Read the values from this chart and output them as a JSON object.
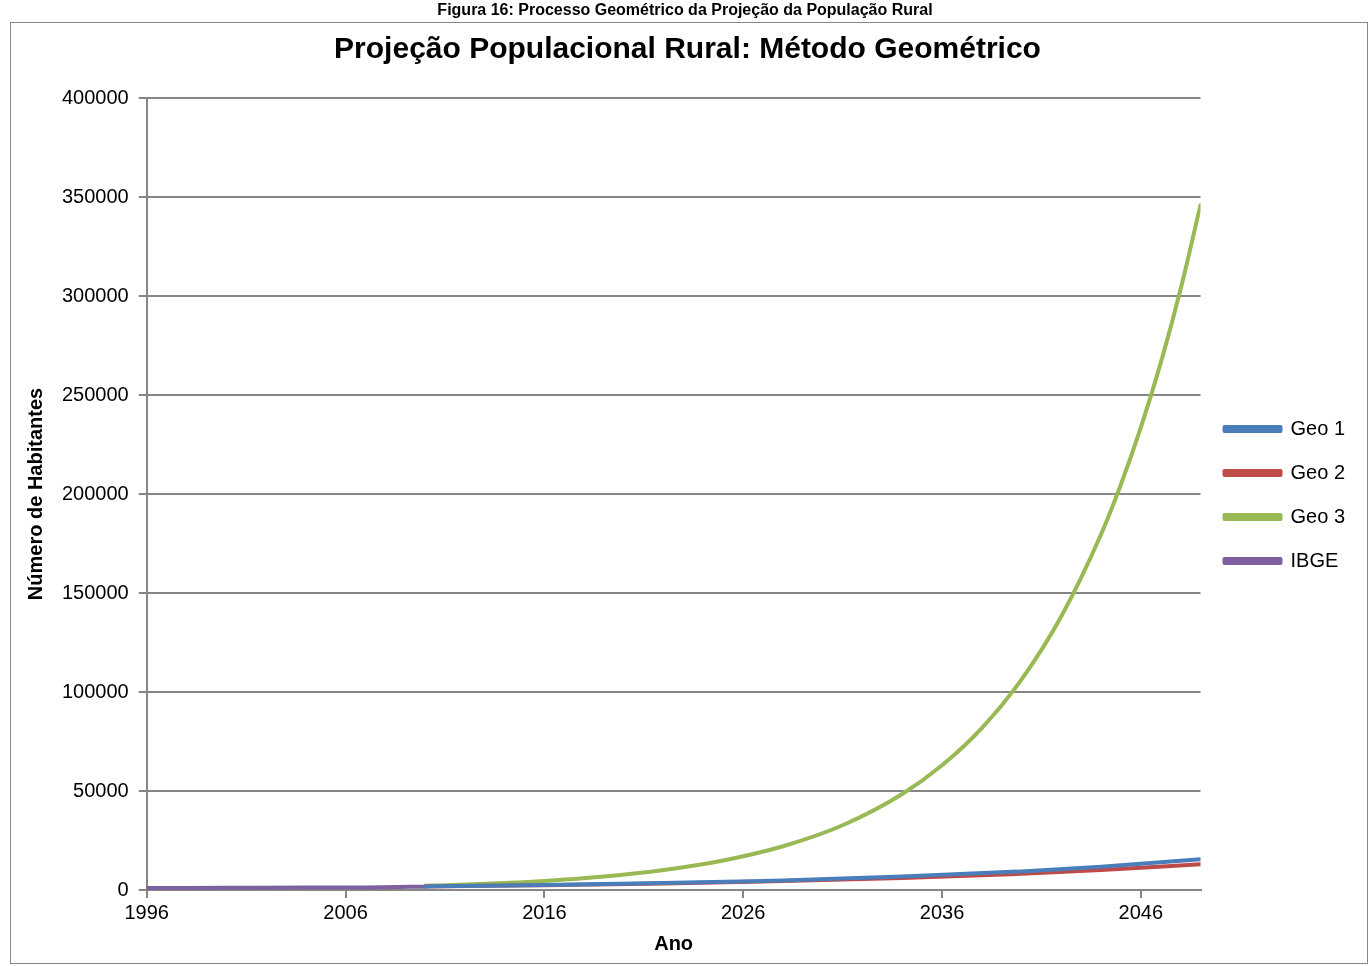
{
  "chart_data": {
    "type": "line",
    "title": "Projeção Populacional Rural: Método Geométrico",
    "xlabel": "Ano",
    "ylabel": "Número de Habitantes",
    "annotations": [
      "Figura 16: Processo Geométrico da Projeção da População Rural"
    ],
    "xlim": [
      1996,
      2049
    ],
    "xticks": [
      1996,
      2006,
      2016,
      2026,
      2036,
      2046
    ],
    "ylim": [
      0,
      400000
    ],
    "yticks": [
      0,
      50000,
      100000,
      150000,
      200000,
      250000,
      300000,
      350000,
      400000
    ],
    "grid": "y",
    "legend": "right",
    "marker": "none",
    "line_style": "solid",
    "series": [
      {
        "name": "Geo 1",
        "color": "#4a7ebb",
        "x": [
          2010,
          2016,
          2022,
          2028,
          2034,
          2040,
          2044,
          2049
        ],
        "values": [
          1800,
          2500,
          3500,
          4800,
          6800,
          9400,
          11800,
          15500
        ]
      },
      {
        "name": "Geo 2",
        "color": "#be4b48",
        "x": [
          2010,
          2016,
          2022,
          2028,
          2034,
          2040,
          2044,
          2049
        ],
        "values": [
          1800,
          2400,
          3300,
          4500,
          6100,
          8200,
          10100,
          13000
        ]
      },
      {
        "name": "Geo 3",
        "color": "#98b954",
        "x": [
          2010,
          2013,
          2016,
          2019,
          2022,
          2025,
          2028,
          2031,
          2034,
          2036,
          2038,
          2040,
          2042,
          2044,
          2045,
          2046,
          2047,
          2048,
          2049
        ],
        "values": [
          2100,
          3100,
          4600,
          6800,
          10100,
          14900,
          22100,
          32700,
          48500,
          63000,
          81800,
          106400,
          138300,
          179700,
          204900,
          233600,
          266200,
          303500,
          346000
        ]
      },
      {
        "name": "IBGE",
        "color": "#7d60a0",
        "x": [
          1996,
          2000,
          2004,
          2007,
          2010
        ],
        "values": [
          1000,
          1100,
          1200,
          1300,
          1700
        ]
      }
    ]
  }
}
